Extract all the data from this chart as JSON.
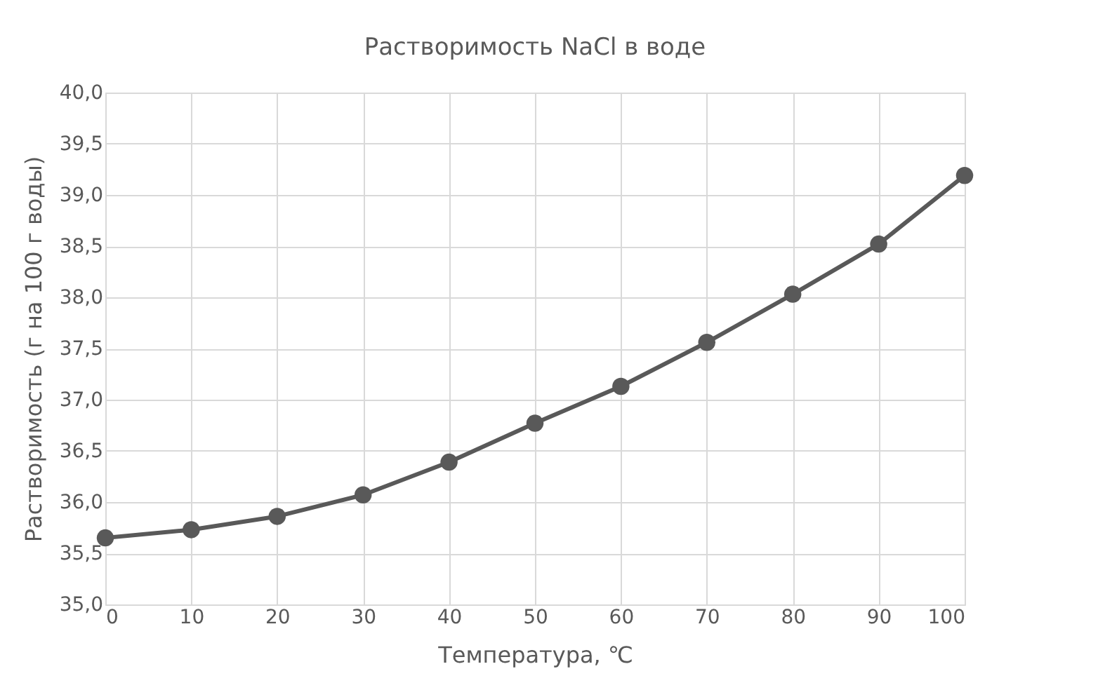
{
  "chart_data": {
    "type": "line",
    "title": "Растворимость NaCl в воде",
    "xlabel": "Температура, ℃",
    "ylabel": "Растворимость (г на 100 г воды)",
    "x": [
      0,
      10,
      20,
      30,
      40,
      50,
      60,
      70,
      80,
      90,
      100
    ],
    "series": [
      {
        "color": "#595959",
        "values": [
          35.65,
          35.73,
          35.86,
          36.07,
          36.39,
          36.77,
          37.13,
          37.56,
          38.03,
          38.52,
          39.19
        ]
      }
    ],
    "xlim": [
      0,
      100
    ],
    "xticks": [
      0,
      10,
      20,
      30,
      40,
      50,
      60,
      70,
      80,
      90,
      100
    ],
    "ylim": [
      35,
      40
    ],
    "yticks": [
      {
        "value": 35,
        "label": "35,0"
      },
      {
        "value": 35.5,
        "label": "35,5"
      },
      {
        "value": 36,
        "label": "36,0"
      },
      {
        "value": 36.5,
        "label": "36,5"
      },
      {
        "value": 37,
        "label": "37,0"
      },
      {
        "value": 37.5,
        "label": "37,5"
      },
      {
        "value": 38,
        "label": "38,0"
      },
      {
        "value": 38.5,
        "label": "38,5"
      },
      {
        "value": 39,
        "label": "39,0"
      },
      {
        "value": 39.5,
        "label": "39,5"
      },
      {
        "value": 40,
        "label": "40,0"
      }
    ],
    "grid": true,
    "marker": "circle",
    "line_style": "solid"
  }
}
